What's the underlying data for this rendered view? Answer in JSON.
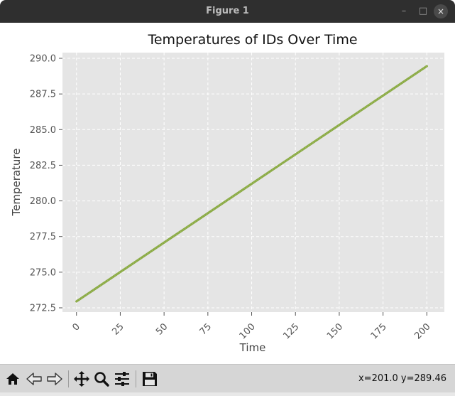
{
  "window": {
    "title": "Figure 1"
  },
  "controls": {
    "minimize": "–",
    "maximize": "□",
    "close": "×"
  },
  "toolbar": {
    "buttons": [
      "home-icon",
      "back-arrow-icon",
      "forward-arrow-icon",
      "pan-icon",
      "zoom-icon",
      "configure-subplots-icon",
      "save-icon"
    ],
    "coords": "x=201.0 y=289.46"
  },
  "chart_data": {
    "type": "line",
    "title": "Temperatures of IDs Over Time",
    "xlabel": "Time",
    "ylabel": "Temperature",
    "xlim": [
      -8,
      210
    ],
    "ylim": [
      272.2,
      290.4
    ],
    "xticks": [
      0,
      25,
      50,
      75,
      100,
      125,
      150,
      175,
      200
    ],
    "yticks": [
      272.5,
      275.0,
      277.5,
      280.0,
      282.5,
      285.0,
      287.5,
      290.0
    ],
    "grid": true,
    "series": [
      {
        "x": [
          0,
          200
        ],
        "y": [
          272.95,
          289.45
        ],
        "color": "#8aaa45"
      }
    ]
  }
}
